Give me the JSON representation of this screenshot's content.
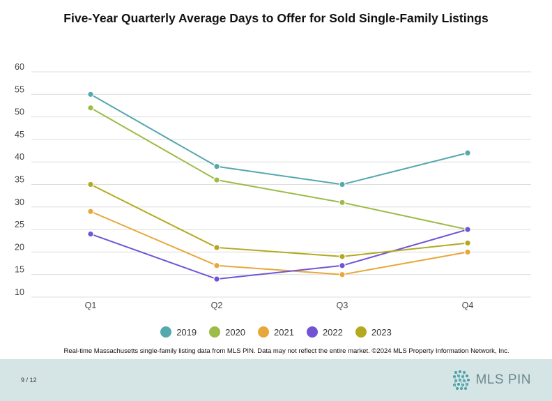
{
  "title": "Five-Year Quarterly Average Days to Offer for Sold Single-Family Listings",
  "chart_data": {
    "type": "line",
    "title": "Five-Year Quarterly Average Days to Offer for Sold Single-Family Listings",
    "categories": [
      "Q1",
      "Q2",
      "Q3",
      "Q4"
    ],
    "yticks": [
      10,
      15,
      20,
      25,
      30,
      35,
      40,
      45,
      50,
      55,
      60
    ],
    "ylim": [
      10,
      60
    ],
    "grid": true,
    "legend_position": "bottom",
    "series": [
      {
        "name": "2019",
        "color": "#55a8ad",
        "values": [
          55,
          39,
          35,
          42
        ]
      },
      {
        "name": "2020",
        "color": "#9dbb47",
        "values": [
          52,
          36,
          31,
          25
        ]
      },
      {
        "name": "2021",
        "color": "#e8a73a",
        "values": [
          29,
          17,
          15,
          20
        ]
      },
      {
        "name": "2022",
        "color": "#7154d6",
        "values": [
          24,
          14,
          17,
          25
        ]
      },
      {
        "name": "2023",
        "color": "#b3a91f",
        "values": [
          35,
          21,
          19,
          22
        ]
      }
    ]
  },
  "note": "Real-time Massachusetts single-family listing data from MLS PIN. Data may not reflect the entire market. ©2024 MLS Property Information Network, Inc.",
  "footer": {
    "page_number": "9 / 12",
    "logo_text": "MLS PIN",
    "logo_icon": "mls-pin-logo-icon",
    "background_color": "#d5e4e5"
  }
}
